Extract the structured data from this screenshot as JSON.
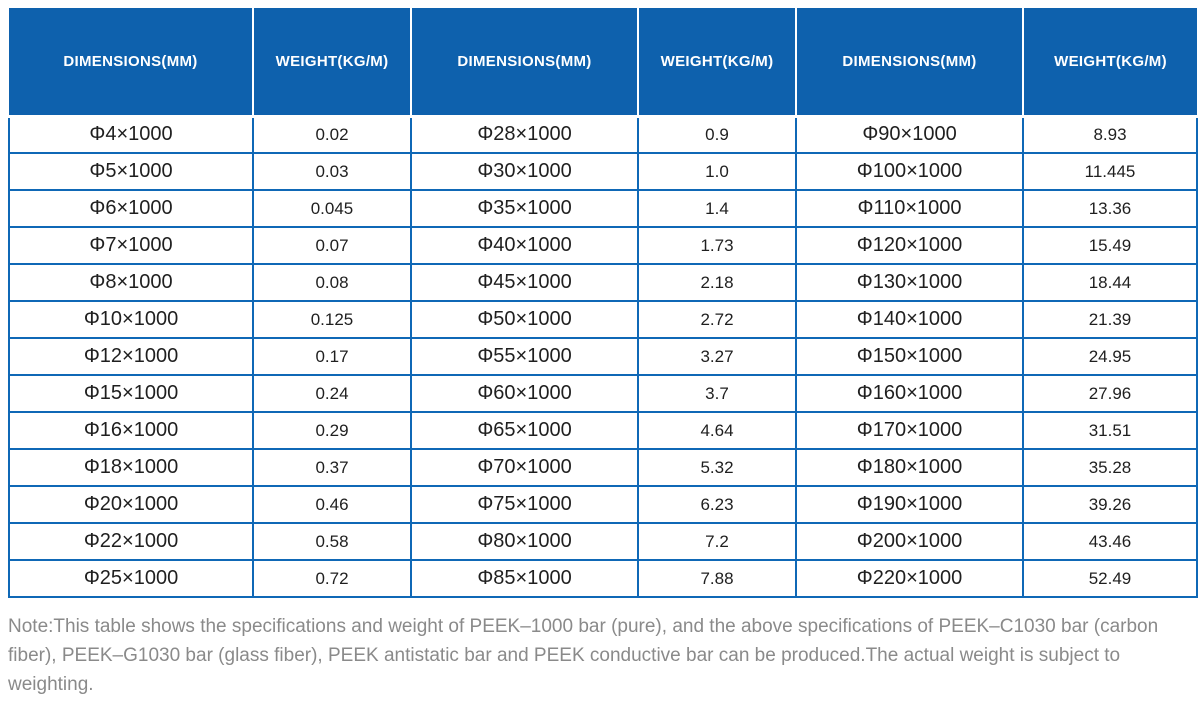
{
  "colors": {
    "header_bg": "#0e61ad",
    "grid_border": "#0f68b6",
    "header_text": "#ffffff",
    "cell_text": "#1f1f1f",
    "note_text": "#8a8a8a",
    "page_bg": "#ffffff"
  },
  "table": {
    "columns": [
      "DIMENSIONS(MM)",
      "WEIGHT(KG/M)",
      "DIMENSIONS(MM)",
      "WEIGHT(KG/M)",
      "DIMENSIONS(MM)",
      "WEIGHT(KG/M)"
    ],
    "rows": [
      [
        "Φ4×1000",
        "0.02",
        "Φ28×1000",
        "0.9",
        "Φ90×1000",
        "8.93"
      ],
      [
        "Φ5×1000",
        "0.03",
        "Φ30×1000",
        "1.0",
        "Φ100×1000",
        "11.445"
      ],
      [
        "Φ6×1000",
        "0.045",
        "Φ35×1000",
        "1.4",
        "Φ110×1000",
        "13.36"
      ],
      [
        "Φ7×1000",
        "0.07",
        "Φ40×1000",
        "1.73",
        "Φ120×1000",
        "15.49"
      ],
      [
        "Φ8×1000",
        "0.08",
        "Φ45×1000",
        "2.18",
        "Φ130×1000",
        "18.44"
      ],
      [
        "Φ10×1000",
        "0.125",
        "Φ50×1000",
        "2.72",
        "Φ140×1000",
        "21.39"
      ],
      [
        "Φ12×1000",
        "0.17",
        "Φ55×1000",
        "3.27",
        "Φ150×1000",
        "24.95"
      ],
      [
        "Φ15×1000",
        "0.24",
        "Φ60×1000",
        "3.7",
        "Φ160×1000",
        "27.96"
      ],
      [
        "Φ16×1000",
        "0.29",
        "Φ65×1000",
        "4.64",
        "Φ170×1000",
        "31.51"
      ],
      [
        "Φ18×1000",
        "0.37",
        "Φ70×1000",
        "5.32",
        "Φ180×1000",
        "35.28"
      ],
      [
        "Φ20×1000",
        "0.46",
        "Φ75×1000",
        "6.23",
        "Φ190×1000",
        "39.26"
      ],
      [
        "Φ22×1000",
        "0.58",
        "Φ80×1000",
        "7.2",
        "Φ200×1000",
        "43.46"
      ],
      [
        "Φ25×1000",
        "0.72",
        "Φ85×1000",
        "7.88",
        "Φ220×1000",
        "52.49"
      ]
    ]
  },
  "note": "Note:This table shows the specifications and weight of PEEK–1000 bar (pure), and the above specifications of PEEK–C1030 bar (carbon fiber), PEEK–G1030 bar (glass fiber), PEEK antistatic bar and PEEK conductive bar can be produced.The actual weight is subject to weighting."
}
